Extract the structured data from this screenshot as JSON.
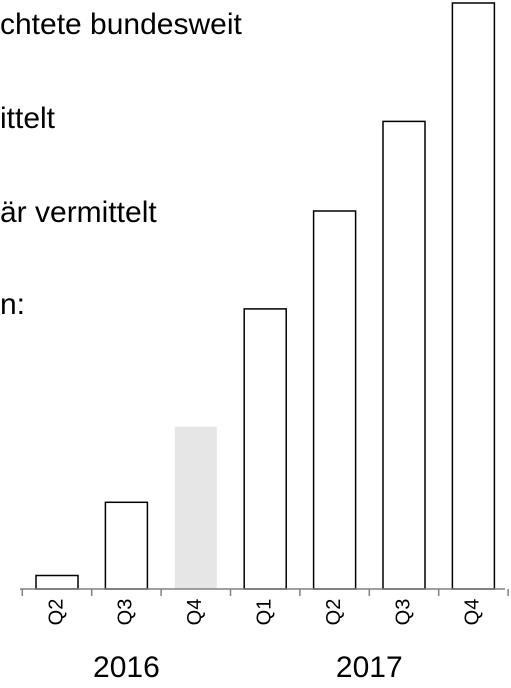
{
  "text_lines": [
    "chtete bundesweit",
    "ittelt",
    "är vermittelt",
    "n:"
  ],
  "chart_data": {
    "type": "bar",
    "categories": [
      "Q2",
      "Q3",
      "Q4",
      "Q1",
      "Q2",
      "Q3",
      "Q4"
    ],
    "years": [
      {
        "label": "2016",
        "categories": [
          "Q2",
          "Q3",
          "Q4"
        ]
      },
      {
        "label": "2017",
        "categories": [
          "Q1",
          "Q2",
          "Q3",
          "Q4"
        ]
      }
    ],
    "values": [
      2.3,
      14.8,
      27.7,
      47.8,
      64.5,
      79.8,
      100
    ],
    "highlight_index": 2,
    "ylim": [
      0,
      100
    ],
    "colors": {
      "bar_fill": "#ffffff",
      "bar_stroke": "#000000",
      "highlight_fill": "#e6e6e6",
      "axis": "#808080"
    }
  }
}
